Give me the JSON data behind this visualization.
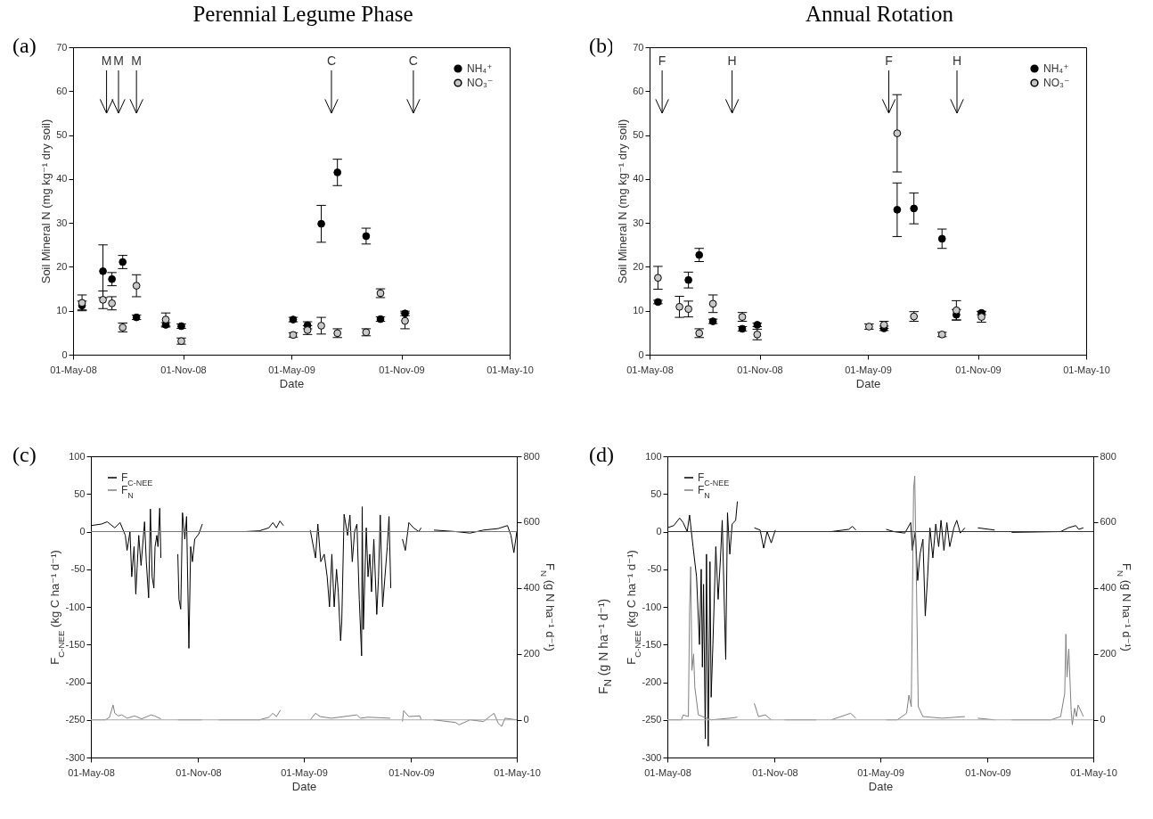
{
  "chart_data": [
    {
      "type": "scatter",
      "title": "Perennial Legume Phase",
      "xlabel": "Date",
      "ylabel": "Soil Mineral N (mg kg⁻¹ dry soil)",
      "legend": "top right",
      "marker": "circle",
      "x": [
        "2008-05-16",
        "2008-06-20",
        "2008-07-05",
        "2008-07-23",
        "2008-08-15",
        "2008-10-03",
        "2008-10-29",
        "2009-05-04",
        "2009-05-28",
        "2009-06-20",
        "2009-07-17",
        "2009-09-03",
        "2009-09-27",
        "2009-11-07"
      ],
      "xlim": [
        "2008-05-01",
        "2010-05-01"
      ],
      "xticks": [
        {
          "value": "2008-05-01",
          "label": "01-May-08"
        },
        {
          "value": "2008-11-01",
          "label": "01-Nov-08"
        },
        {
          "value": "2009-05-01",
          "label": "01-May-09"
        },
        {
          "value": "2009-11-01",
          "label": "01-Nov-09"
        },
        {
          "value": "2010-05-01",
          "label": "01-May-10"
        }
      ],
      "ylim": [
        0,
        70
      ],
      "yticks": [
        0,
        10,
        20,
        30,
        40,
        50,
        60,
        70
      ],
      "series": [
        {
          "name": "NH₄⁺",
          "color": "#000000",
          "values": [
            11.2,
            19,
            17.2,
            21.1,
            8.5,
            6.8,
            6.5,
            8.0,
            6.7,
            29.8,
            41.5,
            27,
            8.1,
            9.4
          ],
          "errors": [
            1,
            6,
            1.5,
            1.5,
            0.5,
            0.5,
            0.5,
            0.5,
            0.8,
            4.2,
            3,
            1.8,
            0.5,
            0.5
          ]
        },
        {
          "name": "NO₃⁻",
          "color": "#c8c8c8",
          "values": [
            11.8,
            12.5,
            11.7,
            6.2,
            15.7,
            8.0,
            3.1,
            4.5,
            5.6,
            6.6,
            4.9,
            5.1,
            14.0,
            7.7
          ],
          "errors": [
            1.8,
            2,
            1.5,
            1,
            2.5,
            1.5,
            0.7,
            0.5,
            1,
            1.9,
            1,
            0.8,
            1,
            1.8
          ]
        }
      ],
      "ref_lines": [
        {
          "axis": "x",
          "value": "2008-06-26",
          "label": "M"
        },
        {
          "axis": "x",
          "value": "2008-07-16",
          "label": "M"
        },
        {
          "axis": "x",
          "value": "2008-08-15",
          "label": "M"
        },
        {
          "axis": "x",
          "value": "2009-07-07",
          "label": "C"
        },
        {
          "axis": "x",
          "value": "2009-11-21",
          "label": "C"
        }
      ],
      "annotations": [
        "(a)"
      ]
    },
    {
      "type": "scatter",
      "title": "Annual Rotation",
      "xlabel": "Date",
      "ylabel": "Soil Mineral N (mg kg⁻¹ dry soil)",
      "legend": "top right",
      "marker": "circle",
      "x": [
        "2008-05-15",
        "2008-06-20",
        "2008-07-05",
        "2008-07-23",
        "2008-08-15",
        "2008-10-03",
        "2008-10-28",
        "2009-05-03",
        "2009-05-28",
        "2009-06-19",
        "2009-07-17",
        "2009-09-02",
        "2009-09-26",
        "2009-11-07"
      ],
      "xlim": [
        "2008-05-01",
        "2010-05-01"
      ],
      "xticks": [
        {
          "value": "2008-05-01",
          "label": "01-May-08"
        },
        {
          "value": "2008-11-01",
          "label": "01-Nov-08"
        },
        {
          "value": "2009-05-01",
          "label": "01-May-09"
        },
        {
          "value": "2009-11-01",
          "label": "01-Nov-09"
        },
        {
          "value": "2010-05-01",
          "label": "01-May-10"
        }
      ],
      "ylim": [
        0,
        70
      ],
      "yticks": [
        0,
        10,
        20,
        30,
        40,
        50,
        60,
        70
      ],
      "series": [
        {
          "name": "NH₄⁺",
          "color": "#000000",
          "values": [
            12.0,
            null,
            17,
            22.7,
            7.6,
            5.9,
            6.8,
            null,
            6.0,
            33,
            33.3,
            26.4,
            9.1,
            9.5
          ],
          "errors": [
            0.4,
            null,
            1.8,
            1.5,
            0.5,
            0.5,
            0.4,
            null,
            0.5,
            6.1,
            3.5,
            2.2,
            1.2,
            0.4
          ]
        },
        {
          "name": "NO₃⁻",
          "color": "#c8c8c8",
          "values": [
            17.5,
            10.9,
            10.4,
            4.9,
            11.6,
            8.6,
            4.6,
            6.4,
            6.8,
            50.4,
            8.7,
            4.6,
            10.1,
            8.6
          ],
          "errors": [
            2.6,
            2.4,
            1.8,
            1,
            2,
            1,
            1.2,
            0.6,
            0.8,
            8.8,
            1.1,
            0.5,
            2.2,
            1.2
          ]
        }
      ],
      "ref_lines": [
        {
          "axis": "x",
          "value": "2008-05-22",
          "label": "F"
        },
        {
          "axis": "x",
          "value": "2008-09-16",
          "label": "H"
        },
        {
          "axis": "x",
          "value": "2009-06-05",
          "label": "F"
        },
        {
          "axis": "x",
          "value": "2009-09-27",
          "label": "H"
        }
      ],
      "annotations": [
        "(b)"
      ]
    },
    {
      "type": "line",
      "xlabel": "Date",
      "ylabel": "F$_{C-NEE}$ (kg C ha⁻¹ d⁻¹)",
      "y2label": "F$_{N}$ (g N ha⁻¹ d⁻¹)",
      "legend": "top left",
      "xlim": [
        "2008-05-01",
        "2010-05-01"
      ],
      "xticks": [
        {
          "value": "2008-05-01",
          "label": "01-May-08"
        },
        {
          "value": "2008-11-01",
          "label": "01-Nov-08"
        },
        {
          "value": "2009-05-01",
          "label": "01-May-09"
        },
        {
          "value": "2009-11-01",
          "label": "01-Nov-09"
        },
        {
          "value": "2010-05-01",
          "label": "01-May-10"
        }
      ],
      "ylim": [
        -300,
        100
      ],
      "yticks": [
        -300,
        -250,
        -200,
        -150,
        -100,
        -50,
        0,
        50,
        100
      ],
      "y2lim": [
        -114.3,
        800
      ],
      "y2ticks": [
        0,
        200,
        400,
        600,
        800
      ],
      "ref_lines": [
        {
          "axis": "y",
          "value": 0,
          "color": "#777777"
        },
        {
          "axis": "y2",
          "value": 0,
          "color": "#aaaaaa"
        }
      ],
      "series": [
        {
          "name": "F$_{C-NEE}$",
          "color": "#000000",
          "x": [
            "2008-05-01",
            "2008-05-19",
            "2008-05-29",
            "2008-06-11",
            "2008-06-20",
            "2008-06-29",
            "2008-07-02",
            "2008-07-07",
            "2008-07-10",
            "2008-07-14",
            "2008-07-17",
            "2008-07-22",
            "2008-07-26",
            "2008-08-01",
            "2008-08-04",
            "2008-08-08",
            "2008-08-11",
            "2008-08-14",
            "2008-08-17",
            "2008-08-19",
            "2008-08-22",
            "2008-08-24",
            "2008-08-27",
            "2008-08-29",
            "2008-09-10",
            "2008-09-27",
            "2008-09-29",
            "2008-10-02",
            "2008-10-05",
            "2008-10-09",
            "2008-10-12",
            "2008-10-16",
            "2008-10-19",
            "2008-10-22",
            "2008-10-26",
            "2008-11-02",
            "2008-11-08",
            "2008-11-20",
            "2008-12-06",
            "2009-01-20",
            "2009-02-14",
            "2009-03-02",
            "2009-03-09",
            "2009-03-15",
            "2009-03-21",
            "2009-03-27",
            "2009-04-15",
            "2009-05-12",
            "2009-05-21",
            "2009-05-25",
            "2009-05-30",
            "2009-06-05",
            "2009-06-10",
            "2009-06-14",
            "2009-06-18",
            "2009-06-22",
            "2009-06-26",
            "2009-06-29",
            "2009-07-03",
            "2009-07-05",
            "2009-07-09",
            "2009-07-15",
            "2009-07-19",
            "2009-07-23",
            "2009-07-27",
            "2009-07-31",
            "2009-08-04",
            "2009-08-08",
            "2009-08-09",
            "2009-08-11",
            "2009-08-16",
            "2009-08-19",
            "2009-08-22",
            "2009-08-25",
            "2009-08-29",
            "2009-09-03",
            "2009-09-06",
            "2009-09-09",
            "2009-09-13",
            "2009-09-17",
            "2009-09-21",
            "2009-09-24",
            "2009-09-27",
            "2009-10-10",
            "2009-10-17",
            "2009-10-22",
            "2009-10-28",
            "2009-11-05",
            "2009-11-14",
            "2009-11-18",
            "2009-12-01",
            "2009-12-10",
            "2010-01-16",
            "2010-02-10",
            "2010-03-05",
            "2010-03-30",
            "2010-04-15",
            "2010-04-21",
            "2010-04-26",
            "2010-05-01"
          ],
          "values": [
            8,
            10,
            13,
            5,
            12,
            -5,
            -25,
            0,
            -60,
            -20,
            -83,
            -5,
            -45,
            13,
            -40,
            -88,
            30,
            -60,
            -75,
            -20,
            -5,
            -20,
            31,
            -35,
            null,
            -30,
            -90,
            -103,
            25,
            -10,
            20,
            -155,
            -20,
            -40,
            -10,
            -3,
            10,
            null,
            0,
            0,
            1,
            5,
            12,
            5,
            14,
            8,
            null,
            2,
            -35,
            10,
            -40,
            -30,
            -60,
            -100,
            -30,
            -100,
            -50,
            -80,
            -145,
            -120,
            23,
            -5,
            22,
            -40,
            0,
            10,
            -90,
            -165,
            33,
            -130,
            5,
            -60,
            -30,
            -80,
            -10,
            -110,
            -60,
            22,
            -100,
            -60,
            -20,
            20,
            -75,
            null,
            -10,
            -25,
            12,
            5,
            0,
            5,
            null,
            2,
            0,
            -2,
            2,
            4,
            8,
            -5,
            -28,
            0
          ]
        },
        {
          "name": "F$_{N}$",
          "color": "#808080",
          "axis": "y2",
          "x": [
            "2008-05-01",
            "2008-05-26",
            "2008-06-02",
            "2008-06-08",
            "2008-06-11",
            "2008-06-17",
            "2008-06-23",
            "2008-07-02",
            "2008-07-15",
            "2008-07-27",
            "2008-08-12",
            "2008-08-18",
            "2008-08-29",
            "2008-09-10",
            "2008-09-27",
            "2008-11-07",
            "2008-11-20",
            "2008-12-06",
            "2009-02-14",
            "2009-03-02",
            "2009-03-09",
            "2009-03-15",
            "2009-03-22",
            "2009-04-15",
            "2009-05-12",
            "2009-05-21",
            "2009-05-29",
            "2009-06-17",
            "2009-07-31",
            "2009-08-06",
            "2009-08-19",
            "2009-09-26",
            "2009-10-10",
            "2009-10-17",
            "2009-10-19",
            "2009-10-28",
            "2009-11-16",
            "2009-11-18",
            "2009-12-01",
            "2009-12-10",
            "2010-01-16",
            "2010-01-22",
            "2010-02-10",
            "2010-03-05",
            "2010-03-17",
            "2010-03-23",
            "2010-03-30",
            "2010-04-05",
            "2010-04-11",
            "2010-05-01"
          ],
          "values": [
            0,
            0,
            8,
            45,
            20,
            12,
            15,
            5,
            12,
            3,
            15,
            12,
            3,
            null,
            0,
            0,
            null,
            0,
            0,
            8,
            20,
            10,
            30,
            null,
            0,
            20,
            10,
            5,
            15,
            5,
            8,
            5,
            null,
            -5,
            28,
            10,
            12,
            0,
            null,
            0,
            -8,
            -15,
            0,
            -5,
            12,
            20,
            -10,
            -20,
            5,
            0
          ]
        }
      ],
      "annotations": [
        "(c)"
      ]
    },
    {
      "type": "line",
      "xlabel": "Date",
      "ylabel": "F$_{C-NEE}$ (kg C ha⁻¹ d⁻¹)",
      "y2label": "F$_{N}$ (g N ha⁻¹ d⁻¹)",
      "legend": "top left",
      "xlim": [
        "2008-05-01",
        "2010-05-01"
      ],
      "xticks": [
        {
          "value": "2008-05-01",
          "label": "01-May-08"
        },
        {
          "value": "2008-11-01",
          "label": "01-Nov-08"
        },
        {
          "value": "2009-05-01",
          "label": "01-May-09"
        },
        {
          "value": "2009-11-01",
          "label": "01-Nov-09"
        },
        {
          "value": "2010-05-01",
          "label": "01-May-10"
        }
      ],
      "ylim": [
        -300,
        100
      ],
      "yticks": [
        -300,
        -250,
        -200,
        -150,
        -100,
        -50,
        0,
        50,
        100
      ],
      "y2lim": [
        -114.3,
        800
      ],
      "y2ticks": [
        0,
        200,
        400,
        600,
        800
      ],
      "ref_lines": [
        {
          "axis": "y",
          "value": 0,
          "color": "#333333"
        },
        {
          "axis": "y2",
          "value": 0,
          "color": "#aaaaaa"
        }
      ],
      "series": [
        {
          "name": "F$_{C-NEE}$",
          "color": "#000000",
          "x": [
            "2008-05-01",
            "2008-05-12",
            "2008-05-22",
            "2008-05-28",
            "2008-06-04",
            "2008-06-08",
            "2008-06-14",
            "2008-06-20",
            "2008-06-25",
            "2008-06-28",
            "2008-06-30",
            "2008-07-02",
            "2008-07-05",
            "2008-07-07",
            "2008-07-10",
            "2008-07-13",
            "2008-07-15",
            "2008-07-18",
            "2008-07-23",
            "2008-07-27",
            "2008-07-31",
            "2008-08-03",
            "2008-08-07",
            "2008-08-09",
            "2008-08-12",
            "2008-08-16",
            "2008-08-20",
            "2008-08-26",
            "2008-08-29",
            "2008-09-15",
            "2008-09-27",
            "2008-10-07",
            "2008-10-13",
            "2008-10-19",
            "2008-10-26",
            "2008-11-02",
            "2008-11-10",
            "2008-11-18",
            "2009-01-11",
            "2009-01-20",
            "2009-02-06",
            "2009-03-08",
            "2009-03-14",
            "2009-03-20",
            "2009-04-10",
            "2009-05-11",
            "2009-05-24",
            "2009-06-12",
            "2009-06-22",
            "2009-06-25",
            "2009-06-30",
            "2009-07-04",
            "2009-07-08",
            "2009-07-13",
            "2009-07-17",
            "2009-07-21",
            "2009-07-25",
            "2009-07-30",
            "2009-08-04",
            "2009-08-09",
            "2009-08-13",
            "2009-08-18",
            "2009-08-23",
            "2009-08-28",
            "2009-09-04",
            "2009-09-09",
            "2009-09-15",
            "2009-09-23",
            "2009-10-05",
            "2009-10-15",
            "2009-11-13",
            "2009-11-25",
            "2009-12-12",
            "2010-03-06",
            "2010-03-19",
            "2010-04-01",
            "2010-04-06",
            "2010-04-14"
          ],
          "values": [
            5,
            8,
            18,
            12,
            0,
            22,
            -20,
            -60,
            -150,
            -50,
            -180,
            -70,
            -275,
            -30,
            -285,
            -40,
            -220,
            -150,
            -20,
            -90,
            -35,
            15,
            -110,
            -170,
            25,
            -30,
            10,
            15,
            40,
            null,
            5,
            2,
            -22,
            0,
            -15,
            2,
            null,
            0,
            0,
            null,
            0,
            3,
            7,
            2,
            null,
            3,
            0,
            -2,
            12,
            -25,
            0,
            -65,
            -30,
            -10,
            -112,
            -60,
            5,
            -35,
            10,
            -20,
            15,
            -25,
            12,
            -20,
            5,
            15,
            -2,
            5,
            null,
            5,
            2,
            null,
            -1,
            0,
            5,
            8,
            3,
            5
          ]
        },
        {
          "name": "F$_{N}$",
          "color": "#808080",
          "axis": "y2",
          "x": [
            "2008-05-01",
            "2008-05-25",
            "2008-05-28",
            "2008-06-06",
            "2008-06-08",
            "2008-06-10",
            "2008-06-12",
            "2008-06-15",
            "2008-06-17",
            "2008-06-23",
            "2008-07-15",
            "2008-08-16",
            "2008-08-29",
            "2008-09-15",
            "2008-09-27",
            "2008-10-04",
            "2008-10-16",
            "2008-10-26",
            "2008-11-10",
            "2008-11-18",
            "2009-01-11",
            "2009-01-20",
            "2009-02-06",
            "2009-03-11",
            "2009-03-20",
            "2009-04-10",
            "2009-05-11",
            "2009-05-30",
            "2009-06-15",
            "2009-06-19",
            "2009-06-23",
            "2009-06-27",
            "2009-06-29",
            "2009-07-02",
            "2009-07-05",
            "2009-07-13",
            "2009-08-15",
            "2009-09-23",
            "2009-10-05",
            "2009-10-15",
            "2009-11-13",
            "2009-11-25",
            "2009-12-12",
            "2010-02-17",
            "2010-03-06",
            "2010-03-13",
            "2010-03-15",
            "2010-03-17",
            "2010-03-20",
            "2010-03-24",
            "2010-03-26",
            "2010-03-30",
            "2010-04-02",
            "2010-04-05",
            "2010-04-14"
          ],
          "values": [
            0,
            0,
            15,
            10,
            330,
            465,
            150,
            200,
            100,
            15,
            0,
            5,
            8,
            null,
            50,
            10,
            15,
            0,
            null,
            0,
            0,
            null,
            0,
            20,
            5,
            null,
            0,
            0,
            20,
            75,
            40,
            700,
            740,
            400,
            40,
            10,
            5,
            10,
            null,
            5,
            0,
            null,
            0,
            0,
            10,
            80,
            260,
            130,
            215,
            30,
            -15,
            35,
            10,
            45,
            10
          ]
        }
      ],
      "annotations": [
        "(d)",
        "F$_{N}$ (g N ha⁻¹ d⁻¹)"
      ]
    }
  ]
}
